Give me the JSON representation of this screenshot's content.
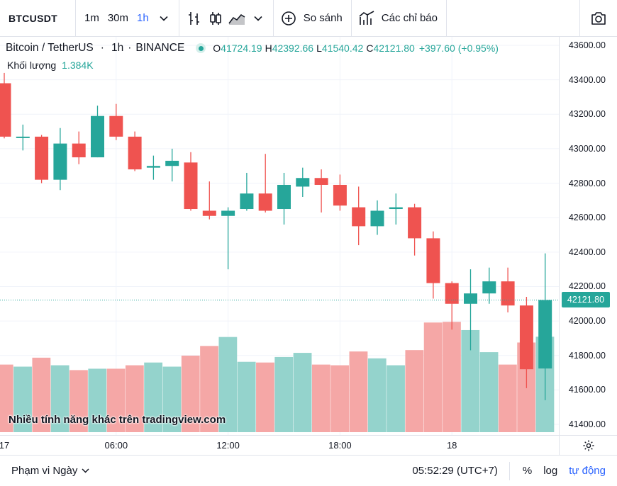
{
  "toolbar": {
    "symbol": "BTCUSDT",
    "intervals": [
      "1m",
      "30m",
      "1h"
    ],
    "active_interval": "1h",
    "compare_label": "So sánh",
    "indicators_label": "Các chỉ báo"
  },
  "legend": {
    "symbol_description": "Bitcoin / TetherUS",
    "interval": "1h",
    "exchange": "BINANCE",
    "open_label": "O",
    "open": "41724.19",
    "high_label": "H",
    "high": "42392.66",
    "low_label": "L",
    "low": "41540.42",
    "close_label": "C",
    "close": "42121.80",
    "change": "+397.60 (+0.95%)",
    "volume_label": "Khối lượng",
    "volume": "1.384K"
  },
  "promo_text": "Nhiều tính năng khác trên tradingview.com",
  "bottom_bar": {
    "range_label": "Phạm vi Ngày",
    "clock": "05:52:29 (UTC+7)",
    "percent_label": "%",
    "log_label": "log",
    "auto_label": "tự động"
  },
  "colors": {
    "up": "#26a69a",
    "down": "#ef5350",
    "volume_up": "#94d3cc",
    "volume_down": "#f5a7a6",
    "accent": "#2962ff"
  },
  "chart_data": {
    "type": "candlestick",
    "ylim": [
      41400,
      43600
    ],
    "price_ticks": [
      "43600.00",
      "43400.00",
      "43200.00",
      "43000.00",
      "42800.00",
      "42600.00",
      "42400.00",
      "42200.00",
      "42000.00",
      "41800.00",
      "41600.00",
      "41400.00"
    ],
    "time_ticks": [
      {
        "label": "17",
        "bar": -0.5
      },
      {
        "label": "06:00",
        "bar": 6
      },
      {
        "label": "12:00",
        "bar": 12
      },
      {
        "label": "18:00",
        "bar": 18
      },
      {
        "label": "18",
        "bar": 24
      }
    ],
    "last_price": "42121.80",
    "volume_max": 1.5,
    "candles": [
      {
        "o": 43380,
        "h": 43440,
        "l": 43060,
        "c": 43070,
        "v": 0.98
      },
      {
        "o": 43070,
        "h": 43140,
        "l": 42990,
        "c": 43070,
        "v": 0.95
      },
      {
        "o": 43070,
        "h": 43080,
        "l": 42800,
        "c": 42820,
        "v": 1.08
      },
      {
        "o": 42820,
        "h": 43120,
        "l": 42760,
        "c": 43030,
        "v": 0.97
      },
      {
        "o": 43030,
        "h": 43100,
        "l": 42910,
        "c": 42950,
        "v": 0.9
      },
      {
        "o": 42950,
        "h": 43250,
        "l": 42950,
        "c": 43190,
        "v": 0.92
      },
      {
        "o": 43190,
        "h": 43260,
        "l": 43050,
        "c": 43070,
        "v": 0.92
      },
      {
        "o": 43070,
        "h": 43100,
        "l": 42870,
        "c": 42880,
        "v": 0.97
      },
      {
        "o": 42890,
        "h": 42960,
        "l": 42820,
        "c": 42900,
        "v": 1.01
      },
      {
        "o": 42900,
        "h": 43000,
        "l": 42810,
        "c": 42930,
        "v": 0.95
      },
      {
        "o": 42920,
        "h": 42980,
        "l": 42640,
        "c": 42650,
        "v": 1.11
      },
      {
        "o": 42640,
        "h": 42810,
        "l": 42590,
        "c": 42610,
        "v": 1.25
      },
      {
        "o": 42610,
        "h": 42660,
        "l": 42300,
        "c": 42640,
        "v": 1.38
      },
      {
        "o": 42650,
        "h": 42860,
        "l": 42640,
        "c": 42740,
        "v": 1.02
      },
      {
        "o": 42740,
        "h": 42970,
        "l": 42630,
        "c": 42640,
        "v": 1.01
      },
      {
        "o": 42650,
        "h": 42860,
        "l": 42560,
        "c": 42790,
        "v": 1.09
      },
      {
        "o": 42780,
        "h": 42890,
        "l": 42720,
        "c": 42830,
        "v": 1.15
      },
      {
        "o": 42830,
        "h": 42880,
        "l": 42630,
        "c": 42790,
        "v": 0.98
      },
      {
        "o": 42790,
        "h": 42850,
        "l": 42640,
        "c": 42670,
        "v": 0.97
      },
      {
        "o": 42660,
        "h": 42780,
        "l": 42440,
        "c": 42550,
        "v": 1.17
      },
      {
        "o": 42550,
        "h": 42700,
        "l": 42500,
        "c": 42640,
        "v": 1.07
      },
      {
        "o": 42650,
        "h": 42740,
        "l": 42560,
        "c": 42660,
        "v": 0.97
      },
      {
        "o": 42660,
        "h": 42680,
        "l": 42380,
        "c": 42480,
        "v": 1.19
      },
      {
        "o": 42480,
        "h": 42520,
        "l": 42130,
        "c": 42220,
        "v": 1.59
      },
      {
        "o": 42220,
        "h": 42230,
        "l": 41950,
        "c": 42100,
        "v": 1.6
      },
      {
        "o": 42100,
        "h": 42300,
        "l": 41830,
        "c": 42160,
        "v": 1.48
      },
      {
        "o": 42160,
        "h": 42310,
        "l": 42100,
        "c": 42230,
        "v": 1.16
      },
      {
        "o": 42230,
        "h": 42310,
        "l": 42050,
        "c": 42090,
        "v": 0.98
      },
      {
        "o": 42090,
        "h": 42140,
        "l": 41610,
        "c": 41720,
        "v": 1.3
      },
      {
        "o": 41724.19,
        "h": 42392.66,
        "l": 41540.42,
        "c": 42121.8,
        "v": 1.384
      }
    ]
  }
}
